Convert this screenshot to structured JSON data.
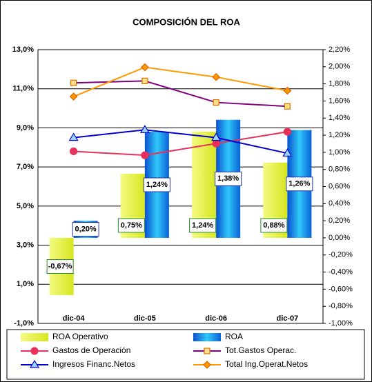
{
  "chart_data": {
    "type": "combo",
    "title": "COMPOSICIÓN DEL ROA",
    "categories": [
      "dic-04",
      "dic-05",
      "dic-06",
      "dic-07"
    ],
    "ylim": [
      -1,
      13
    ],
    "yticks": [
      {
        "value": -1,
        "label": "-1,0%"
      },
      {
        "value": 1,
        "label": "1,0%"
      },
      {
        "value": 3,
        "label": "3,0%"
      },
      {
        "value": 5,
        "label": "5,0%"
      },
      {
        "value": 7,
        "label": "7,0%"
      },
      {
        "value": 9,
        "label": "9,0%"
      },
      {
        "value": 11,
        "label": "11,0%"
      },
      {
        "value": 13,
        "label": "13,0%"
      }
    ],
    "y2lim": [
      -1,
      2.2
    ],
    "y2ticks": [
      {
        "value": -1,
        "label": "-1,00%"
      },
      {
        "value": -0.8,
        "label": "-0,80%"
      },
      {
        "value": -0.6,
        "label": "-0,60%"
      },
      {
        "value": -0.4,
        "label": "-0,40%"
      },
      {
        "value": -0.2,
        "label": "-0,20%"
      },
      {
        "value": 0,
        "label": "0,00%"
      },
      {
        "value": 0.2,
        "label": "0,20%"
      },
      {
        "value": 0.4,
        "label": "0,40%"
      },
      {
        "value": 0.6,
        "label": "0,60%"
      },
      {
        "value": 0.8,
        "label": "0,80%"
      },
      {
        "value": 1,
        "label": "1,00%"
      },
      {
        "value": 1.2,
        "label": "1,20%"
      },
      {
        "value": 1.4,
        "label": "1,40%"
      },
      {
        "value": 1.6,
        "label": "1,60%"
      },
      {
        "value": 1.8,
        "label": "1,80%"
      },
      {
        "value": 2,
        "label": "2,00%"
      },
      {
        "value": 2.2,
        "label": "2,20%"
      }
    ],
    "grid": true,
    "legend": "bottom",
    "series": [
      {
        "name": "ROA Operativo",
        "type": "bar",
        "axis": "y2",
        "color": "#e6f03c",
        "values": [
          -0.67,
          0.75,
          1.24,
          0.88
        ],
        "value_labels": [
          "-0,67%",
          "0,75%",
          "1,24%",
          "0,88%"
        ]
      },
      {
        "name": "ROA",
        "type": "bar",
        "axis": "y2",
        "color": "#1f8ef0",
        "values": [
          0.2,
          1.24,
          1.38,
          1.26
        ],
        "value_labels": [
          "0,20%",
          "1,24%",
          "1,38%",
          "1,26%"
        ]
      },
      {
        "name": "Gastos de Operación",
        "type": "line",
        "marker": "circle",
        "color": "#e8305a",
        "values": [
          7.8,
          7.6,
          8.2,
          8.8
        ]
      },
      {
        "name": "Tot.Gastos Operac.",
        "type": "line",
        "marker": "square",
        "color": "#800080",
        "values": [
          11.3,
          11.4,
          10.3,
          10.1
        ]
      },
      {
        "name": "Ingresos Financ.Netos",
        "type": "line",
        "marker": "triangle",
        "color": "#0000cc",
        "values": [
          8.5,
          8.9,
          8.5,
          7.7
        ]
      },
      {
        "name": "Total Ing.Operat.Netos",
        "type": "line",
        "marker": "diamond",
        "color": "#ff9900",
        "values": [
          10.6,
          12.1,
          11.6,
          10.9
        ]
      }
    ]
  }
}
